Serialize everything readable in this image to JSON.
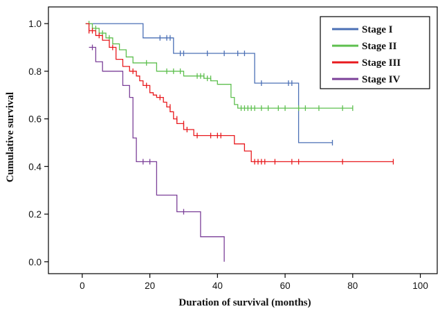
{
  "chart_data": {
    "type": "line",
    "subtype": "kaplan-meier",
    "title": "",
    "xlabel": "Duration of survival (months)",
    "ylabel": "Cumulative survival",
    "xlim": [
      -10,
      105
    ],
    "ylim": [
      -0.05,
      1.07
    ],
    "xticks": [
      "0",
      "20",
      "40",
      "60",
      "80",
      "100"
    ],
    "yticks": [
      "0.0",
      "0.2",
      "0.4",
      "0.6",
      "0.8",
      "1.0"
    ],
    "grid": false,
    "legend_position": "top-right",
    "series": [
      {
        "name": "Stage I",
        "color": "#4a6fb5",
        "steps": [
          [
            1,
            1.0
          ],
          [
            18,
            0.94
          ],
          [
            27,
            0.875
          ],
          [
            51,
            0.75
          ],
          [
            64,
            0.5
          ],
          [
            74,
            0.5
          ]
        ],
        "censored": [
          [
            23,
            0.94
          ],
          [
            25,
            0.94
          ],
          [
            26,
            0.94
          ],
          [
            29,
            0.875
          ],
          [
            30,
            0.875
          ],
          [
            37,
            0.875
          ],
          [
            42,
            0.875
          ],
          [
            46,
            0.875
          ],
          [
            48,
            0.875
          ],
          [
            53,
            0.75
          ],
          [
            61,
            0.75
          ],
          [
            62,
            0.75
          ],
          [
            74,
            0.5
          ]
        ]
      },
      {
        "name": "Stage II",
        "color": "#5dbf4e",
        "steps": [
          [
            1,
            1.0
          ],
          [
            3,
            0.98
          ],
          [
            5,
            0.96
          ],
          [
            7,
            0.94
          ],
          [
            9,
            0.915
          ],
          [
            11,
            0.89
          ],
          [
            13,
            0.86
          ],
          [
            15,
            0.835
          ],
          [
            22,
            0.8
          ],
          [
            30,
            0.78
          ],
          [
            36,
            0.77
          ],
          [
            38,
            0.76
          ],
          [
            40,
            0.745
          ],
          [
            44,
            0.69
          ],
          [
            45,
            0.66
          ],
          [
            46,
            0.645
          ],
          [
            80,
            0.645
          ]
        ],
        "censored": [
          [
            2,
            1.0
          ],
          [
            4,
            0.98
          ],
          [
            6,
            0.96
          ],
          [
            8,
            0.94
          ],
          [
            19,
            0.835
          ],
          [
            25,
            0.8
          ],
          [
            27,
            0.8
          ],
          [
            29,
            0.8
          ],
          [
            34,
            0.78
          ],
          [
            35,
            0.78
          ],
          [
            36,
            0.78
          ],
          [
            37,
            0.77
          ],
          [
            38,
            0.77
          ],
          [
            47,
            0.645
          ],
          [
            48,
            0.645
          ],
          [
            49,
            0.645
          ],
          [
            50,
            0.645
          ],
          [
            51,
            0.645
          ],
          [
            53,
            0.645
          ],
          [
            55,
            0.645
          ],
          [
            58,
            0.645
          ],
          [
            60,
            0.645
          ],
          [
            64,
            0.645
          ],
          [
            66,
            0.645
          ],
          [
            70,
            0.645
          ],
          [
            77,
            0.645
          ],
          [
            80,
            0.645
          ]
        ]
      },
      {
        "name": "Stage III",
        "color": "#e8191d",
        "steps": [
          [
            1,
            1.0
          ],
          [
            2,
            0.97
          ],
          [
            4,
            0.95
          ],
          [
            6,
            0.93
          ],
          [
            8,
            0.9
          ],
          [
            10,
            0.85
          ],
          [
            12,
            0.82
          ],
          [
            14,
            0.8
          ],
          [
            16,
            0.78
          ],
          [
            17,
            0.76
          ],
          [
            18,
            0.74
          ],
          [
            20,
            0.71
          ],
          [
            21,
            0.7
          ],
          [
            22,
            0.69
          ],
          [
            24,
            0.67
          ],
          [
            25,
            0.65
          ],
          [
            26,
            0.63
          ],
          [
            27,
            0.6
          ],
          [
            28,
            0.58
          ],
          [
            30,
            0.555
          ],
          [
            33,
            0.53
          ],
          [
            45,
            0.495
          ],
          [
            48,
            0.465
          ],
          [
            50,
            0.42
          ],
          [
            92,
            0.42
          ]
        ],
        "censored": [
          [
            2,
            0.97
          ],
          [
            3,
            0.97
          ],
          [
            5,
            0.95
          ],
          [
            9,
            0.9
          ],
          [
            15,
            0.8
          ],
          [
            19,
            0.74
          ],
          [
            23,
            0.69
          ],
          [
            26,
            0.65
          ],
          [
            28,
            0.6
          ],
          [
            30,
            0.58
          ],
          [
            31,
            0.555
          ],
          [
            34,
            0.53
          ],
          [
            38,
            0.53
          ],
          [
            40,
            0.53
          ],
          [
            41,
            0.53
          ],
          [
            51,
            0.42
          ],
          [
            52,
            0.42
          ],
          [
            53,
            0.42
          ],
          [
            54,
            0.42
          ],
          [
            57,
            0.42
          ],
          [
            62,
            0.42
          ],
          [
            64,
            0.42
          ],
          [
            77,
            0.42
          ],
          [
            92,
            0.42
          ]
        ]
      },
      {
        "name": "Stage IV",
        "color": "#7b3f98",
        "steps": [
          [
            2,
            0.9
          ],
          [
            4,
            0.84
          ],
          [
            6,
            0.8
          ],
          [
            12,
            0.74
          ],
          [
            14,
            0.69
          ],
          [
            15,
            0.52
          ],
          [
            16,
            0.42
          ],
          [
            22,
            0.28
          ],
          [
            28,
            0.21
          ],
          [
            35,
            0.105
          ],
          [
            42,
            0.0
          ]
        ],
        "censored": [
          [
            3,
            0.9
          ],
          [
            18,
            0.42
          ],
          [
            20,
            0.42
          ],
          [
            30,
            0.21
          ]
        ]
      }
    ]
  }
}
